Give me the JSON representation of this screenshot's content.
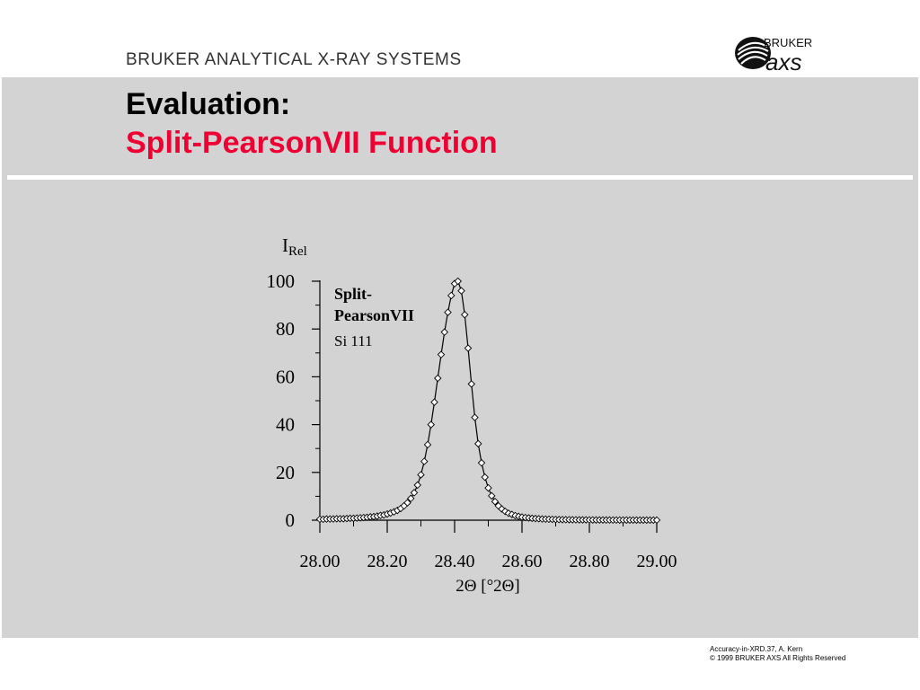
{
  "header": {
    "company_name": "BRUKER ANALYTICAL X-RAY SYSTEMS",
    "logo_text_top": "BRUKER",
    "logo_text_bottom": "axs"
  },
  "title": {
    "line1": "Evaluation:",
    "line2": "Split-PearsonVII Function"
  },
  "colors": {
    "panel": "#d3d3d3",
    "title_accent": "#ee0033"
  },
  "chart_data": {
    "type": "line",
    "ylabel_main": "I",
    "ylabel_sub": "Rel",
    "xlabel": "2Θ [°2Θ]",
    "legend_line1": "Split-",
    "legend_line2": "PearsonVII",
    "legend_line3": "Si 111",
    "xlim": [
      28.0,
      29.0
    ],
    "ylim": [
      0,
      100
    ],
    "x_ticks": [
      "28.00",
      "28.20",
      "28.40",
      "28.60",
      "28.80",
      "29.00"
    ],
    "y_ticks": [
      "0",
      "20",
      "40",
      "60",
      "80",
      "100"
    ],
    "grid": false,
    "marker": "diamond",
    "series": [
      {
        "x": [
          28.0,
          28.01,
          28.02,
          28.03,
          28.04,
          28.05,
          28.06,
          28.07,
          28.08,
          28.09,
          28.1,
          28.11,
          28.12,
          28.13,
          28.14,
          28.15,
          28.16,
          28.17,
          28.18,
          28.19,
          28.2,
          28.21,
          28.22,
          28.23,
          28.24,
          28.25,
          28.26,
          28.27,
          28.28,
          28.29,
          28.3,
          28.31,
          28.32,
          28.33,
          28.34,
          28.35,
          28.36,
          28.37,
          28.38,
          28.39,
          28.4,
          28.41,
          28.42,
          28.43,
          28.44,
          28.45,
          28.46,
          28.47,
          28.48,
          28.49,
          28.5,
          28.51,
          28.52,
          28.53,
          28.54,
          28.55,
          28.56,
          28.57,
          28.58,
          28.59,
          28.6,
          28.61,
          28.62,
          28.63,
          28.64,
          28.65,
          28.66,
          28.67,
          28.68,
          28.69,
          28.7,
          28.71,
          28.72,
          28.73,
          28.74,
          28.75,
          28.76,
          28.77,
          28.78,
          28.79,
          28.8,
          28.81,
          28.82,
          28.83,
          28.84,
          28.85,
          28.86,
          28.87,
          28.88,
          28.89,
          28.9,
          28.91,
          28.92,
          28.93,
          28.94,
          28.95,
          28.96,
          28.97,
          28.98,
          28.99,
          29.0
        ],
        "y": [
          0.4,
          0.4,
          0.5,
          0.5,
          0.5,
          0.6,
          0.6,
          0.6,
          0.7,
          0.8,
          0.8,
          0.9,
          1.0,
          1.1,
          1.2,
          1.4,
          1.5,
          1.7,
          2.0,
          2.2,
          2.6,
          3.0,
          3.5,
          4.1,
          4.9,
          6.0,
          7.3,
          9.1,
          11.5,
          14.7,
          19.0,
          24.6,
          31.6,
          40.0,
          49.4,
          59.4,
          69.3,
          78.7,
          87.0,
          94.0,
          99.0,
          100.0,
          96.0,
          86.0,
          72.0,
          57.0,
          43.0,
          32.0,
          24.0,
          18.0,
          13.5,
          10.2,
          7.8,
          6.0,
          4.7,
          3.7,
          2.9,
          2.4,
          1.9,
          1.6,
          1.3,
          1.1,
          0.95,
          0.8,
          0.7,
          0.6,
          0.5,
          0.45,
          0.4,
          0.35,
          0.3,
          0.27,
          0.24,
          0.22,
          0.2,
          0.18,
          0.16,
          0.15,
          0.14,
          0.13,
          0.12,
          0.11,
          0.1,
          0.09,
          0.09,
          0.08,
          0.08,
          0.07,
          0.07,
          0.06,
          0.06,
          0.06,
          0.05,
          0.05,
          0.05,
          0.05,
          0.04,
          0.04,
          0.04,
          0.04,
          0.04
        ]
      }
    ]
  },
  "footer": {
    "line1": "Accuracy-in-XRD.37, A. Kern",
    "line2": "© 1999  BRUKER AXS  All Rights Reserved"
  }
}
